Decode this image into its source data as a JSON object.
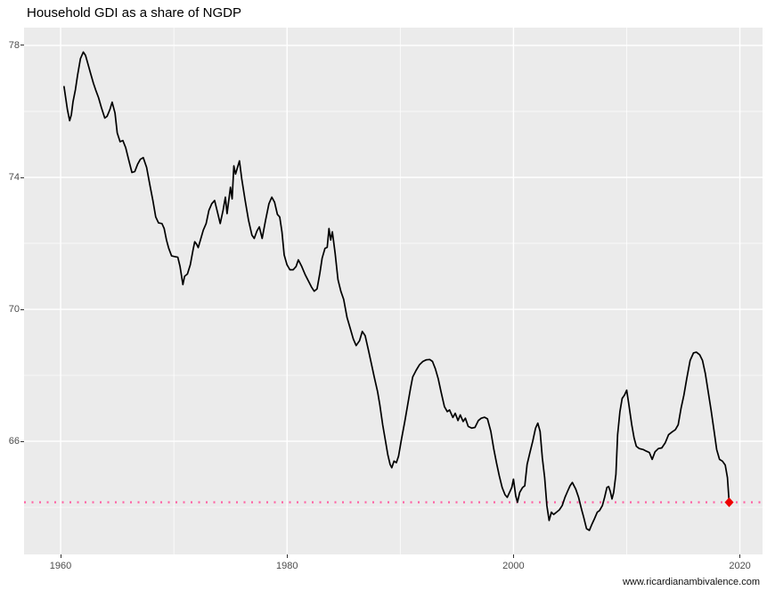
{
  "header": {
    "title": "Household GDI as a share of NGDP"
  },
  "footer": {
    "caption": "www.ricardianambivalence.com"
  },
  "style": {
    "panel_bg": "#ebebeb",
    "grid_color": "#ffffff",
    "tick_label_color": "#4d4d4d",
    "axis_tick_color": "#333333",
    "line_color": "#000000",
    "reference_line_color": "#ff5fa2",
    "endpoint_color": "#ee0000"
  },
  "chart_data": {
    "type": "line",
    "title": "Household GDI as a share of NGDP",
    "xlabel": "",
    "ylabel": "",
    "grid": "on",
    "legend": "none",
    "x_axis": {
      "ticks": [
        1960,
        1980,
        2000,
        2020
      ],
      "minor_ticks": [
        1970,
        1990,
        2010
      ],
      "range": [
        1956.77,
        2022.0
      ]
    },
    "y_axis": {
      "ticks": [
        66,
        70,
        74,
        78
      ],
      "minor_ticks": [
        64,
        68,
        72,
        76
      ],
      "range": [
        62.57,
        78.54
      ]
    },
    "reference_line": {
      "type": "hline",
      "value": 64.15,
      "style": "dotted"
    },
    "last_point_marker": {
      "x": 2019.05,
      "y": 64.15,
      "shape": "diamond"
    },
    "series": [
      {
        "name": "Household GDI as a share of NGDP",
        "points": [
          [
            1960.3,
            76.75
          ],
          [
            1960.45,
            76.4
          ],
          [
            1960.6,
            76.05
          ],
          [
            1960.8,
            75.72
          ],
          [
            1960.95,
            75.9
          ],
          [
            1961.1,
            76.3
          ],
          [
            1961.3,
            76.65
          ],
          [
            1961.5,
            77.1
          ],
          [
            1961.75,
            77.6
          ],
          [
            1962.0,
            77.8
          ],
          [
            1962.2,
            77.7
          ],
          [
            1962.4,
            77.45
          ],
          [
            1962.65,
            77.15
          ],
          [
            1962.9,
            76.85
          ],
          [
            1963.1,
            76.65
          ],
          [
            1963.35,
            76.42
          ],
          [
            1963.6,
            76.12
          ],
          [
            1963.9,
            75.8
          ],
          [
            1964.1,
            75.85
          ],
          [
            1964.35,
            76.05
          ],
          [
            1964.55,
            76.28
          ],
          [
            1964.8,
            75.95
          ],
          [
            1965.0,
            75.35
          ],
          [
            1965.25,
            75.08
          ],
          [
            1965.5,
            75.12
          ],
          [
            1965.75,
            74.9
          ],
          [
            1966.0,
            74.55
          ],
          [
            1966.3,
            74.15
          ],
          [
            1966.55,
            74.18
          ],
          [
            1966.8,
            74.4
          ],
          [
            1967.05,
            74.55
          ],
          [
            1967.3,
            74.6
          ],
          [
            1967.6,
            74.3
          ],
          [
            1967.9,
            73.75
          ],
          [
            1968.15,
            73.3
          ],
          [
            1968.4,
            72.8
          ],
          [
            1968.65,
            72.62
          ],
          [
            1968.95,
            72.6
          ],
          [
            1969.15,
            72.45
          ],
          [
            1969.35,
            72.1
          ],
          [
            1969.55,
            71.85
          ],
          [
            1969.8,
            71.62
          ],
          [
            1970.05,
            71.6
          ],
          [
            1970.35,
            71.58
          ],
          [
            1970.55,
            71.3
          ],
          [
            1970.8,
            70.75
          ],
          [
            1970.95,
            71.0
          ],
          [
            1971.2,
            71.07
          ],
          [
            1971.45,
            71.35
          ],
          [
            1971.7,
            71.8
          ],
          [
            1971.85,
            72.05
          ],
          [
            1972.0,
            71.98
          ],
          [
            1972.15,
            71.87
          ],
          [
            1972.35,
            72.1
          ],
          [
            1972.6,
            72.4
          ],
          [
            1972.85,
            72.6
          ],
          [
            1973.1,
            73.0
          ],
          [
            1973.35,
            73.2
          ],
          [
            1973.6,
            73.3
          ],
          [
            1973.85,
            72.95
          ],
          [
            1974.1,
            72.6
          ],
          [
            1974.35,
            73.0
          ],
          [
            1974.55,
            73.4
          ],
          [
            1974.7,
            72.9
          ],
          [
            1975.0,
            73.7
          ],
          [
            1975.15,
            73.35
          ],
          [
            1975.3,
            74.35
          ],
          [
            1975.45,
            74.1
          ],
          [
            1975.8,
            74.5
          ],
          [
            1976.0,
            73.95
          ],
          [
            1976.3,
            73.3
          ],
          [
            1976.6,
            72.7
          ],
          [
            1976.9,
            72.25
          ],
          [
            1977.1,
            72.15
          ],
          [
            1977.35,
            72.38
          ],
          [
            1977.55,
            72.5
          ],
          [
            1977.8,
            72.15
          ],
          [
            1978.1,
            72.7
          ],
          [
            1978.4,
            73.2
          ],
          [
            1978.65,
            73.4
          ],
          [
            1978.9,
            73.25
          ],
          [
            1979.15,
            72.88
          ],
          [
            1979.35,
            72.8
          ],
          [
            1979.55,
            72.35
          ],
          [
            1979.75,
            71.65
          ],
          [
            1980.0,
            71.35
          ],
          [
            1980.25,
            71.2
          ],
          [
            1980.55,
            71.2
          ],
          [
            1980.8,
            71.3
          ],
          [
            1981.0,
            71.5
          ],
          [
            1981.3,
            71.3
          ],
          [
            1981.6,
            71.05
          ],
          [
            1981.9,
            70.85
          ],
          [
            1982.15,
            70.68
          ],
          [
            1982.4,
            70.55
          ],
          [
            1982.65,
            70.62
          ],
          [
            1982.9,
            71.1
          ],
          [
            1983.1,
            71.55
          ],
          [
            1983.35,
            71.85
          ],
          [
            1983.55,
            71.88
          ],
          [
            1983.7,
            72.45
          ],
          [
            1983.85,
            72.1
          ],
          [
            1984.0,
            72.35
          ],
          [
            1984.25,
            71.7
          ],
          [
            1984.5,
            70.9
          ],
          [
            1984.75,
            70.55
          ],
          [
            1985.0,
            70.3
          ],
          [
            1985.3,
            69.75
          ],
          [
            1985.6,
            69.4
          ],
          [
            1985.85,
            69.1
          ],
          [
            1986.1,
            68.9
          ],
          [
            1986.4,
            69.05
          ],
          [
            1986.65,
            69.33
          ],
          [
            1986.9,
            69.2
          ],
          [
            1987.2,
            68.75
          ],
          [
            1987.45,
            68.35
          ],
          [
            1987.7,
            67.95
          ],
          [
            1988.0,
            67.5
          ],
          [
            1988.2,
            67.1
          ],
          [
            1988.45,
            66.5
          ],
          [
            1988.7,
            66.0
          ],
          [
            1988.9,
            65.6
          ],
          [
            1989.1,
            65.3
          ],
          [
            1989.25,
            65.2
          ],
          [
            1989.45,
            65.4
          ],
          [
            1989.65,
            65.35
          ],
          [
            1989.85,
            65.55
          ],
          [
            1990.1,
            66.05
          ],
          [
            1990.4,
            66.6
          ],
          [
            1990.65,
            67.1
          ],
          [
            1990.9,
            67.6
          ],
          [
            1991.1,
            67.95
          ],
          [
            1991.4,
            68.15
          ],
          [
            1991.7,
            68.32
          ],
          [
            1992.0,
            68.42
          ],
          [
            1992.3,
            68.47
          ],
          [
            1992.6,
            68.48
          ],
          [
            1992.85,
            68.42
          ],
          [
            1993.1,
            68.2
          ],
          [
            1993.35,
            67.9
          ],
          [
            1993.6,
            67.5
          ],
          [
            1993.9,
            67.05
          ],
          [
            1994.15,
            66.9
          ],
          [
            1994.35,
            66.95
          ],
          [
            1994.65,
            66.72
          ],
          [
            1994.85,
            66.85
          ],
          [
            1995.1,
            66.63
          ],
          [
            1995.3,
            66.8
          ],
          [
            1995.55,
            66.6
          ],
          [
            1995.75,
            66.7
          ],
          [
            1996.0,
            66.45
          ],
          [
            1996.3,
            66.4
          ],
          [
            1996.6,
            66.42
          ],
          [
            1996.9,
            66.63
          ],
          [
            1997.15,
            66.7
          ],
          [
            1997.45,
            66.73
          ],
          [
            1997.7,
            66.68
          ],
          [
            1998.0,
            66.3
          ],
          [
            1998.25,
            65.78
          ],
          [
            1998.5,
            65.35
          ],
          [
            1998.75,
            64.95
          ],
          [
            1999.0,
            64.6
          ],
          [
            1999.25,
            64.38
          ],
          [
            1999.45,
            64.3
          ],
          [
            1999.65,
            64.45
          ],
          [
            1999.85,
            64.6
          ],
          [
            2000.0,
            64.85
          ],
          [
            2000.2,
            64.35
          ],
          [
            2000.35,
            64.15
          ],
          [
            2000.55,
            64.45
          ],
          [
            2000.8,
            64.6
          ],
          [
            2001.0,
            64.65
          ],
          [
            2001.2,
            65.3
          ],
          [
            2001.45,
            65.65
          ],
          [
            2001.7,
            66.0
          ],
          [
            2001.95,
            66.4
          ],
          [
            2002.15,
            66.55
          ],
          [
            2002.35,
            66.3
          ],
          [
            2002.55,
            65.5
          ],
          [
            2002.75,
            64.9
          ],
          [
            2002.95,
            64.05
          ],
          [
            2003.15,
            63.6
          ],
          [
            2003.35,
            63.85
          ],
          [
            2003.55,
            63.78
          ],
          [
            2003.8,
            63.85
          ],
          [
            2004.05,
            63.92
          ],
          [
            2004.3,
            64.05
          ],
          [
            2004.55,
            64.3
          ],
          [
            2004.8,
            64.5
          ],
          [
            2005.0,
            64.65
          ],
          [
            2005.2,
            64.75
          ],
          [
            2005.5,
            64.55
          ],
          [
            2005.75,
            64.3
          ],
          [
            2006.0,
            63.95
          ],
          [
            2006.2,
            63.7
          ],
          [
            2006.45,
            63.35
          ],
          [
            2006.7,
            63.3
          ],
          [
            2006.95,
            63.5
          ],
          [
            2007.15,
            63.65
          ],
          [
            2007.4,
            63.85
          ],
          [
            2007.6,
            63.9
          ],
          [
            2007.85,
            64.05
          ],
          [
            2008.05,
            64.3
          ],
          [
            2008.25,
            64.6
          ],
          [
            2008.4,
            64.63
          ],
          [
            2008.55,
            64.48
          ],
          [
            2008.7,
            64.25
          ],
          [
            2008.85,
            64.45
          ],
          [
            2009.05,
            65.0
          ],
          [
            2009.2,
            66.2
          ],
          [
            2009.4,
            66.9
          ],
          [
            2009.6,
            67.3
          ],
          [
            2009.8,
            67.4
          ],
          [
            2010.0,
            67.55
          ],
          [
            2010.2,
            67.1
          ],
          [
            2010.45,
            66.5
          ],
          [
            2010.65,
            66.1
          ],
          [
            2010.85,
            65.85
          ],
          [
            2011.1,
            65.78
          ],
          [
            2011.45,
            65.75
          ],
          [
            2011.75,
            65.7
          ],
          [
            2012.0,
            65.66
          ],
          [
            2012.25,
            65.45
          ],
          [
            2012.5,
            65.68
          ],
          [
            2012.8,
            65.78
          ],
          [
            2013.1,
            65.8
          ],
          [
            2013.4,
            65.95
          ],
          [
            2013.7,
            66.2
          ],
          [
            2014.0,
            66.28
          ],
          [
            2014.3,
            66.35
          ],
          [
            2014.55,
            66.5
          ],
          [
            2014.8,
            67.0
          ],
          [
            2015.05,
            67.4
          ],
          [
            2015.3,
            67.9
          ],
          [
            2015.6,
            68.45
          ],
          [
            2015.9,
            68.68
          ],
          [
            2016.15,
            68.7
          ],
          [
            2016.45,
            68.62
          ],
          [
            2016.7,
            68.45
          ],
          [
            2016.95,
            68.05
          ],
          [
            2017.2,
            67.5
          ],
          [
            2017.45,
            66.95
          ],
          [
            2017.7,
            66.35
          ],
          [
            2017.95,
            65.75
          ],
          [
            2018.2,
            65.45
          ],
          [
            2018.45,
            65.4
          ],
          [
            2018.7,
            65.28
          ],
          [
            2018.9,
            64.9
          ],
          [
            2019.05,
            64.15
          ]
        ]
      }
    ]
  }
}
